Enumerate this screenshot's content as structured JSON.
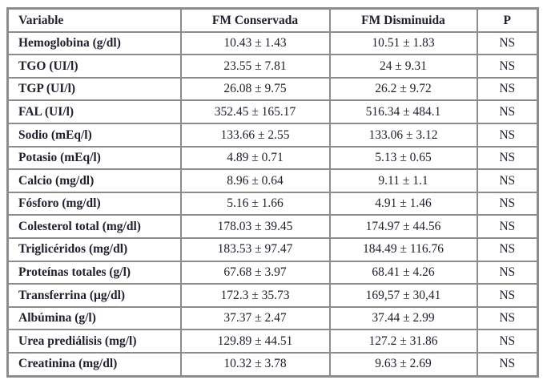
{
  "colors": {
    "border": "#8c8c8c",
    "text": "#20202f",
    "background": "#ffffff"
  },
  "table": {
    "columns": [
      "Variable",
      "FM Conservada",
      "FM Disminuida",
      "P"
    ],
    "rows": [
      {
        "variable": "Hemoglobina (g/dl)",
        "fm_conservada": "10.43 ± 1.43",
        "fm_disminuida": "10.51 ± 1.83",
        "p": "NS"
      },
      {
        "variable": "TGO (UI/l)",
        "fm_conservada": "23.55 ± 7.81",
        "fm_disminuida": "24 ± 9.31",
        "p": "NS"
      },
      {
        "variable": "TGP (UI/l)",
        "fm_conservada": "26.08 ± 9.75",
        "fm_disminuida": "26.2 ± 9.72",
        "p": "NS"
      },
      {
        "variable": "FAL (UI/l)",
        "fm_conservada": "352.45 ± 165.17",
        "fm_disminuida": "516.34 ± 484.1",
        "p": "NS"
      },
      {
        "variable": "Sodio (mEq/l)",
        "fm_conservada": "133.66 ± 2.55",
        "fm_disminuida": "133.06 ± 3.12",
        "p": "NS"
      },
      {
        "variable": "Potasio (mEq/l)",
        "fm_conservada": "4.89 ± 0.71",
        "fm_disminuida": "5.13 ± 0.65",
        "p": "NS"
      },
      {
        "variable": "Calcio (mg/dl)",
        "fm_conservada": "8.96 ± 0.64",
        "fm_disminuida": "9.11 ± 1.1",
        "p": "NS"
      },
      {
        "variable": "Fósforo (mg/dl)",
        "fm_conservada": "5.16 ± 1.66",
        "fm_disminuida": "4.91 ± 1.46",
        "p": "NS"
      },
      {
        "variable": "Colesterol total (mg/dl)",
        "fm_conservada": "178.03 ± 39.45",
        "fm_disminuida": "174.97 ± 44.56",
        "p": "NS"
      },
      {
        "variable": "Triglicéridos (mg/dl)",
        "fm_conservada": "183.53 ± 97.47",
        "fm_disminuida": "184.49 ± 116.76",
        "p": "NS"
      },
      {
        "variable": "Proteínas totales (g/l)",
        "fm_conservada": "67.68 ± 3.97",
        "fm_disminuida": "68.41 ± 4.26",
        "p": "NS"
      },
      {
        "variable": "Transferrina (µg/dl)",
        "fm_conservada": "172.3 ± 35.73",
        "fm_disminuida": "169,57 ± 30,41",
        "p": "NS"
      },
      {
        "variable": "Albúmina (g/l)",
        "fm_conservada": "37.37 ± 2.47",
        "fm_disminuida": "37.44 ± 2.99",
        "p": "NS"
      },
      {
        "variable": "Urea prediálisis (mg/l)",
        "fm_conservada": "129.89 ± 44.51",
        "fm_disminuida": "127.2 ± 31.86",
        "p": "NS"
      },
      {
        "variable": "Creatinina (mg/dl)",
        "fm_conservada": "10.32 ± 3.78",
        "fm_disminuida": "9.63 ± 2.69",
        "p": "NS"
      }
    ]
  }
}
